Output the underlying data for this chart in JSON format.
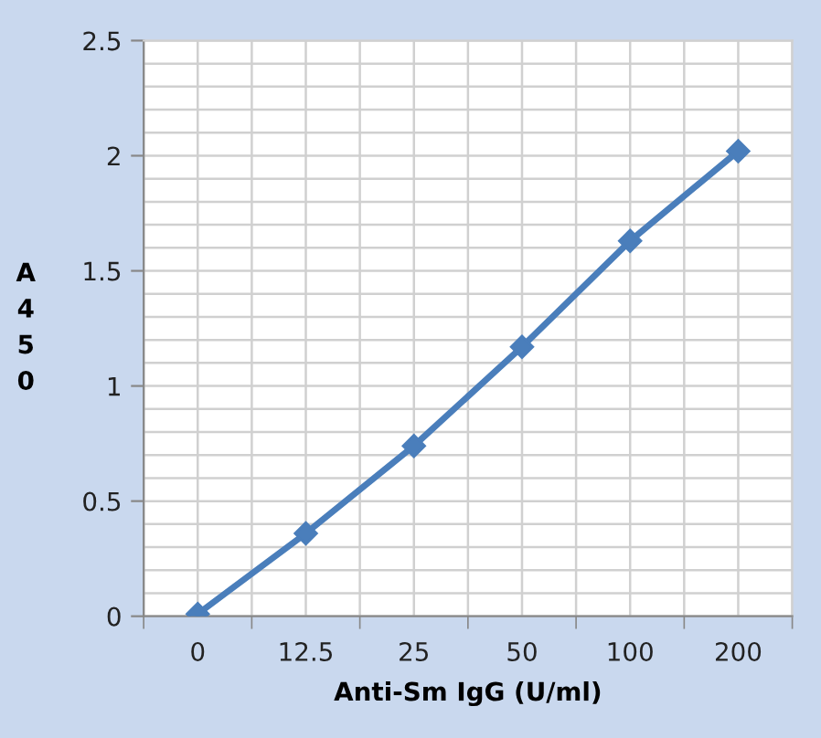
{
  "chart_data": {
    "type": "line",
    "xlabel": "Anti-Sm IgG (U/ml)",
    "ylabel": "A450",
    "categories": [
      "0",
      "12.5",
      "25",
      "50",
      "100",
      "200"
    ],
    "series": [
      {
        "color": "#4a7ebb",
        "values": [
          0.01,
          0.36,
          0.74,
          1.17,
          1.63,
          2.02
        ]
      }
    ],
    "ylim": [
      0,
      2.5
    ],
    "yticks": [
      0,
      0.5,
      1,
      1.5,
      2,
      2.5
    ],
    "grid": true,
    "legend": false,
    "marker": "diamond",
    "line_style": "solid"
  }
}
